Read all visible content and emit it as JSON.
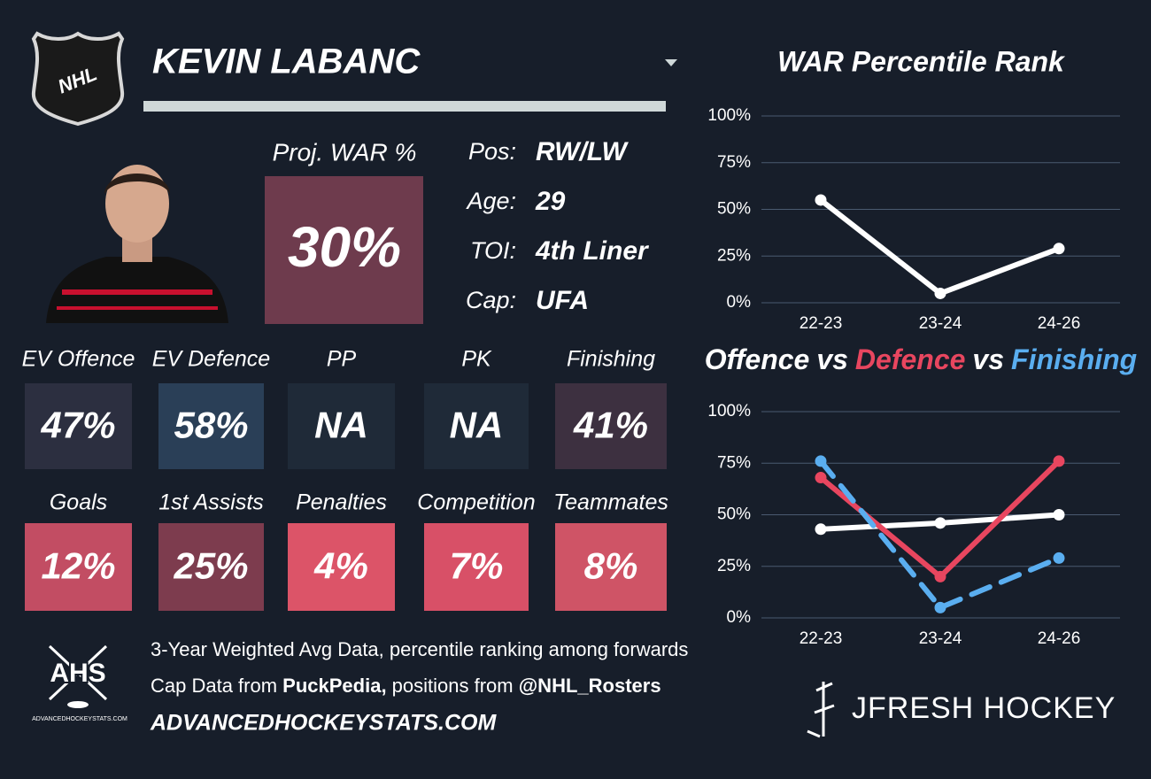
{
  "header": {
    "logo_text": "NHL",
    "player_name": "KEVIN LABANC"
  },
  "proj_war": {
    "label": "Proj. WAR %",
    "value": "30%",
    "color": "#6e3b4d"
  },
  "info": [
    {
      "label": "Pos:",
      "value": "RW/LW"
    },
    {
      "label": "Age:",
      "value": "29"
    },
    {
      "label": "TOI:",
      "value": "4th Liner"
    },
    {
      "label": "Cap:",
      "value": "UFA"
    }
  ],
  "tile_rows": [
    [
      {
        "label": "EV Offence",
        "value": "47%",
        "color": "#2c2f40"
      },
      {
        "label": "EV Defence",
        "value": "58%",
        "color": "#2a3f57"
      },
      {
        "label": "PP",
        "value": "NA",
        "color": "#1f2a38"
      },
      {
        "label": "PK",
        "value": "NA",
        "color": "#1f2a38"
      },
      {
        "label": "Finishing",
        "value": "41%",
        "color": "#3d3040"
      }
    ],
    [
      {
        "label": "Goals",
        "value": "12%",
        "color": "#c24d63"
      },
      {
        "label": "1st Assists",
        "value": "25%",
        "color": "#7d3c4e"
      },
      {
        "label": "Penalties",
        "value": "4%",
        "color": "#dc5468"
      },
      {
        "label": "Competition",
        "value": "7%",
        "color": "#d85067"
      },
      {
        "label": "Teammates",
        "value": "8%",
        "color": "#cf5466"
      }
    ]
  ],
  "footer": {
    "ahs_logo": "AHS",
    "ahs_site": "ADVANCEDHOCKEYSTATS.COM",
    "line1": "3-Year Weighted Avg Data, percentile ranking among forwards",
    "line2": [
      {
        "text": "Cap Data from ",
        "bold": false
      },
      {
        "text": "PuckPedia,",
        "bold": true
      },
      {
        "text": " positions from ",
        "bold": false
      },
      {
        "text": "@NHL_Rosters",
        "bold": true
      }
    ],
    "line3": "ADVANCEDHOCKEYSTATS.COM",
    "brand": "JFRESH HOCKEY"
  },
  "chart_data": [
    {
      "type": "line",
      "title": "WAR Percentile Rank",
      "categories": [
        "22-23",
        "23-24",
        "24-26"
      ],
      "series": [
        {
          "color": "#ffffff",
          "values": [
            55,
            5,
            29
          ],
          "dash": false
        }
      ],
      "ylim": [
        0,
        100
      ],
      "yticks": [
        {
          "value": 0,
          "label": "0%"
        },
        {
          "value": 25,
          "label": "25%"
        },
        {
          "value": 50,
          "label": "50%"
        },
        {
          "value": 75,
          "label": "75%"
        },
        {
          "value": 100,
          "label": "100%"
        }
      ],
      "grid": true
    },
    {
      "type": "line",
      "title_joiner": "vs",
      "categories": [
        "22-23",
        "23-24",
        "24-26"
      ],
      "series": [
        {
          "name": "Offence",
          "color": "#ffffff",
          "values": [
            43,
            46,
            50
          ],
          "dash": false
        },
        {
          "name": "Defence",
          "color": "#e8465f",
          "values": [
            68,
            20,
            76
          ],
          "dash": false
        },
        {
          "name": "Finishing",
          "color": "#5aaef0",
          "values": [
            76,
            5,
            29
          ],
          "dash": true
        }
      ],
      "ylim": [
        0,
        100
      ],
      "yticks": [
        {
          "value": 0,
          "label": "0%"
        },
        {
          "value": 25,
          "label": "25%"
        },
        {
          "value": 50,
          "label": "50%"
        },
        {
          "value": 75,
          "label": "75%"
        },
        {
          "value": 100,
          "label": "100%"
        }
      ],
      "grid": true
    }
  ]
}
